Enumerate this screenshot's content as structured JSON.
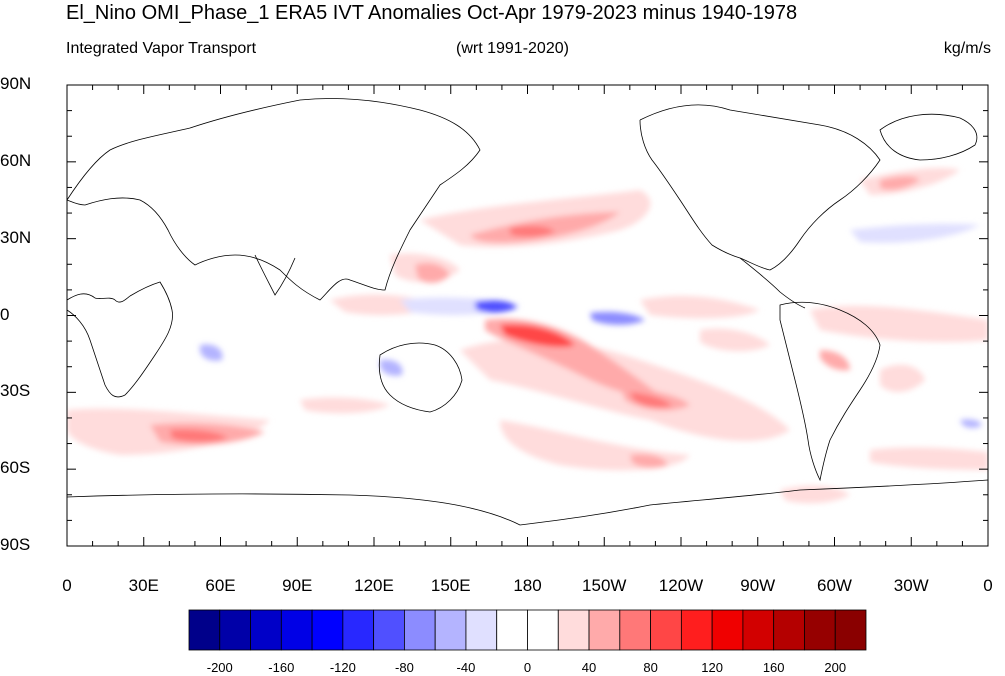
{
  "title": "El_Nino OMI_Phase_1 ERA5 IVT Anomalies Oct-Apr 1979-2023 minus 1940-1978",
  "subtitle_left": "Integrated Vapor Transport",
  "subtitle_center": "(wrt 1991-2020)",
  "subtitle_right": "kg/m/s",
  "lat_labels": [
    "90N",
    "60N",
    "30N",
    "0",
    "30S",
    "60S",
    "90S"
  ],
  "lon_labels": [
    "0",
    "30E",
    "60E",
    "90E",
    "120E",
    "150E",
    "180",
    "150W",
    "120W",
    "90W",
    "60W",
    "30W",
    "0"
  ],
  "colorbar": {
    "labels": [
      "-200",
      "-160",
      "-120",
      "-80",
      "-40",
      "0",
      "40",
      "80",
      "120",
      "160",
      "200"
    ],
    "colors": [
      "#00008a",
      "#0000a8",
      "#0000c8",
      "#0000e6",
      "#0000ff",
      "#2828ff",
      "#5050ff",
      "#8c8cff",
      "#b4b4ff",
      "#e0e0ff",
      "#ffffff",
      "#ffffff",
      "#ffdcdc",
      "#ffaaaa",
      "#ff7878",
      "#ff4646",
      "#ff1e1e",
      "#f00000",
      "#d20000",
      "#b40000",
      "#960000",
      "#8a0000"
    ]
  },
  "map_data": {
    "projection": "cylindrical equidistant",
    "lon_range": [
      0,
      360
    ],
    "lat_range": [
      -90,
      90
    ],
    "coastlines": true
  }
}
